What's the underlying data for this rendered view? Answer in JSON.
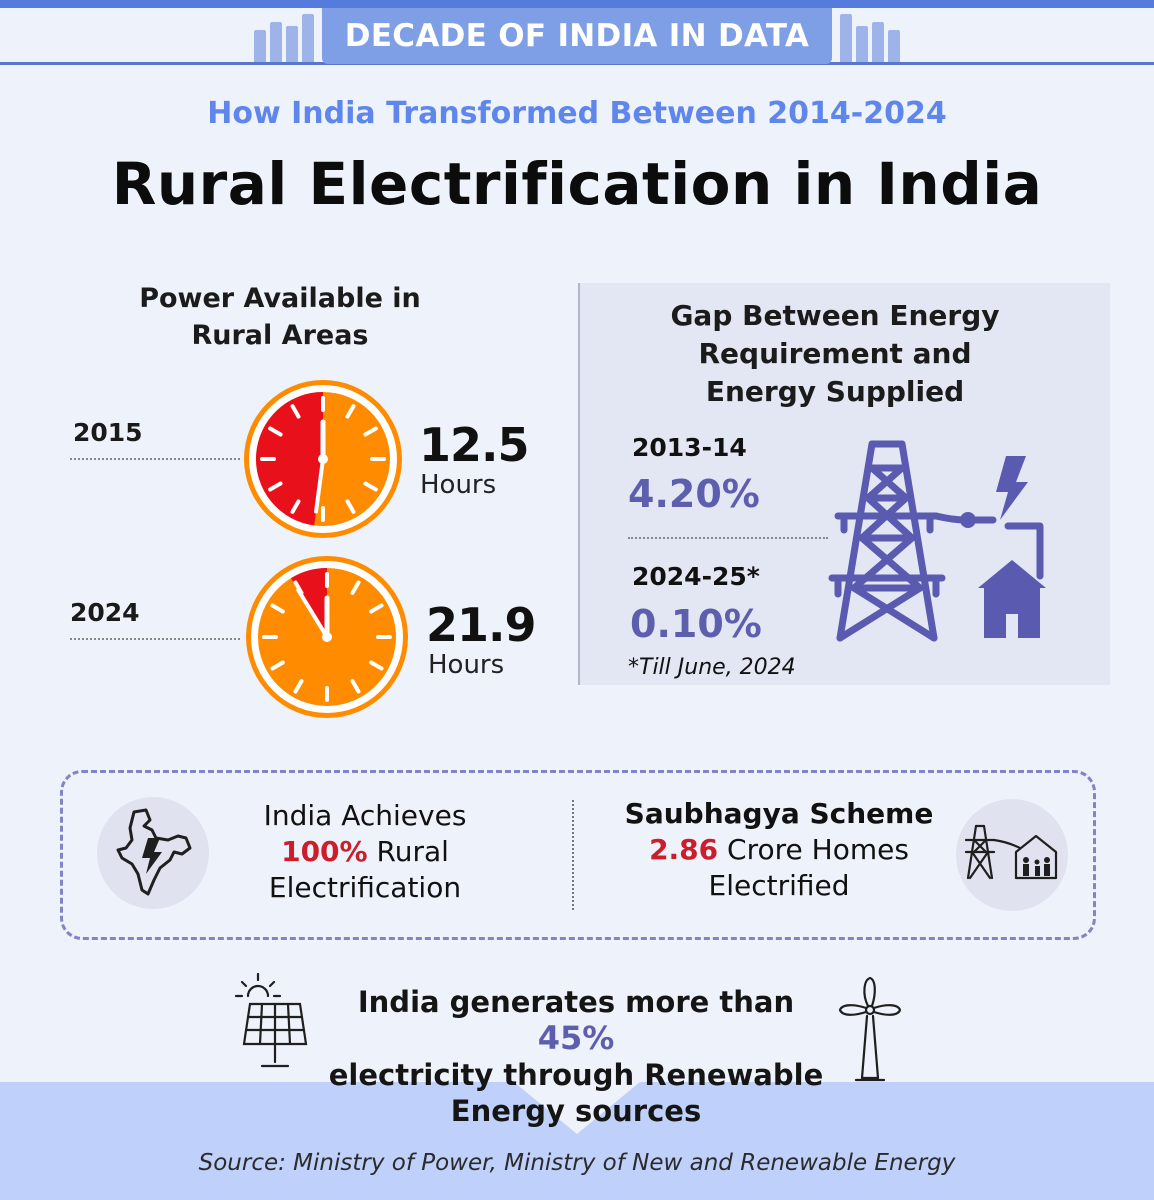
{
  "header": {
    "banner": "DECADE OF INDIA IN DATA",
    "subtitle": "How India Transformed Between 2014-2024",
    "title": "Rural Electrification in India"
  },
  "power": {
    "heading_line1": "Power Available in",
    "heading_line2": "Rural Areas",
    "rows": [
      {
        "year": "2015",
        "value": "12.5",
        "unit": "Hours",
        "hours": 12.5
      },
      {
        "year": "2024",
        "value": "21.9",
        "unit": "Hours",
        "hours": 21.9
      }
    ],
    "colors": {
      "available": "#ff8c00",
      "unavailable": "#e8101a"
    }
  },
  "gap": {
    "heading_line1": "Gap Between Energy",
    "heading_line2": "Requirement and",
    "heading_line3": "Energy Supplied",
    "rows": [
      {
        "year": "2013-14",
        "value": "4.20%"
      },
      {
        "year": "2024-25*",
        "value": "0.10%"
      }
    ],
    "note": "*Till June, 2024",
    "icon": "power-tower-icon"
  },
  "achievements": {
    "left": {
      "line1": "India Achieves",
      "highlight": "100%",
      "line2_rest": " Rural",
      "line3": "Electrification",
      "icon": "india-map-lightning-icon"
    },
    "right": {
      "line1": "Saubhagya Scheme",
      "highlight": "2.86",
      "line2_rest": " Crore Homes",
      "line3": "Electrified",
      "icon": "tower-family-home-icon"
    }
  },
  "renewable": {
    "line1_start": "India generates more than ",
    "highlight": "45%",
    "line2": "electricity through Renewable",
    "line3": "Energy sources",
    "icons": [
      "solar-panel-icon",
      "wind-turbine-icon"
    ]
  },
  "source": "Source: Ministry of Power, Ministry of New and Renewable Energy"
}
